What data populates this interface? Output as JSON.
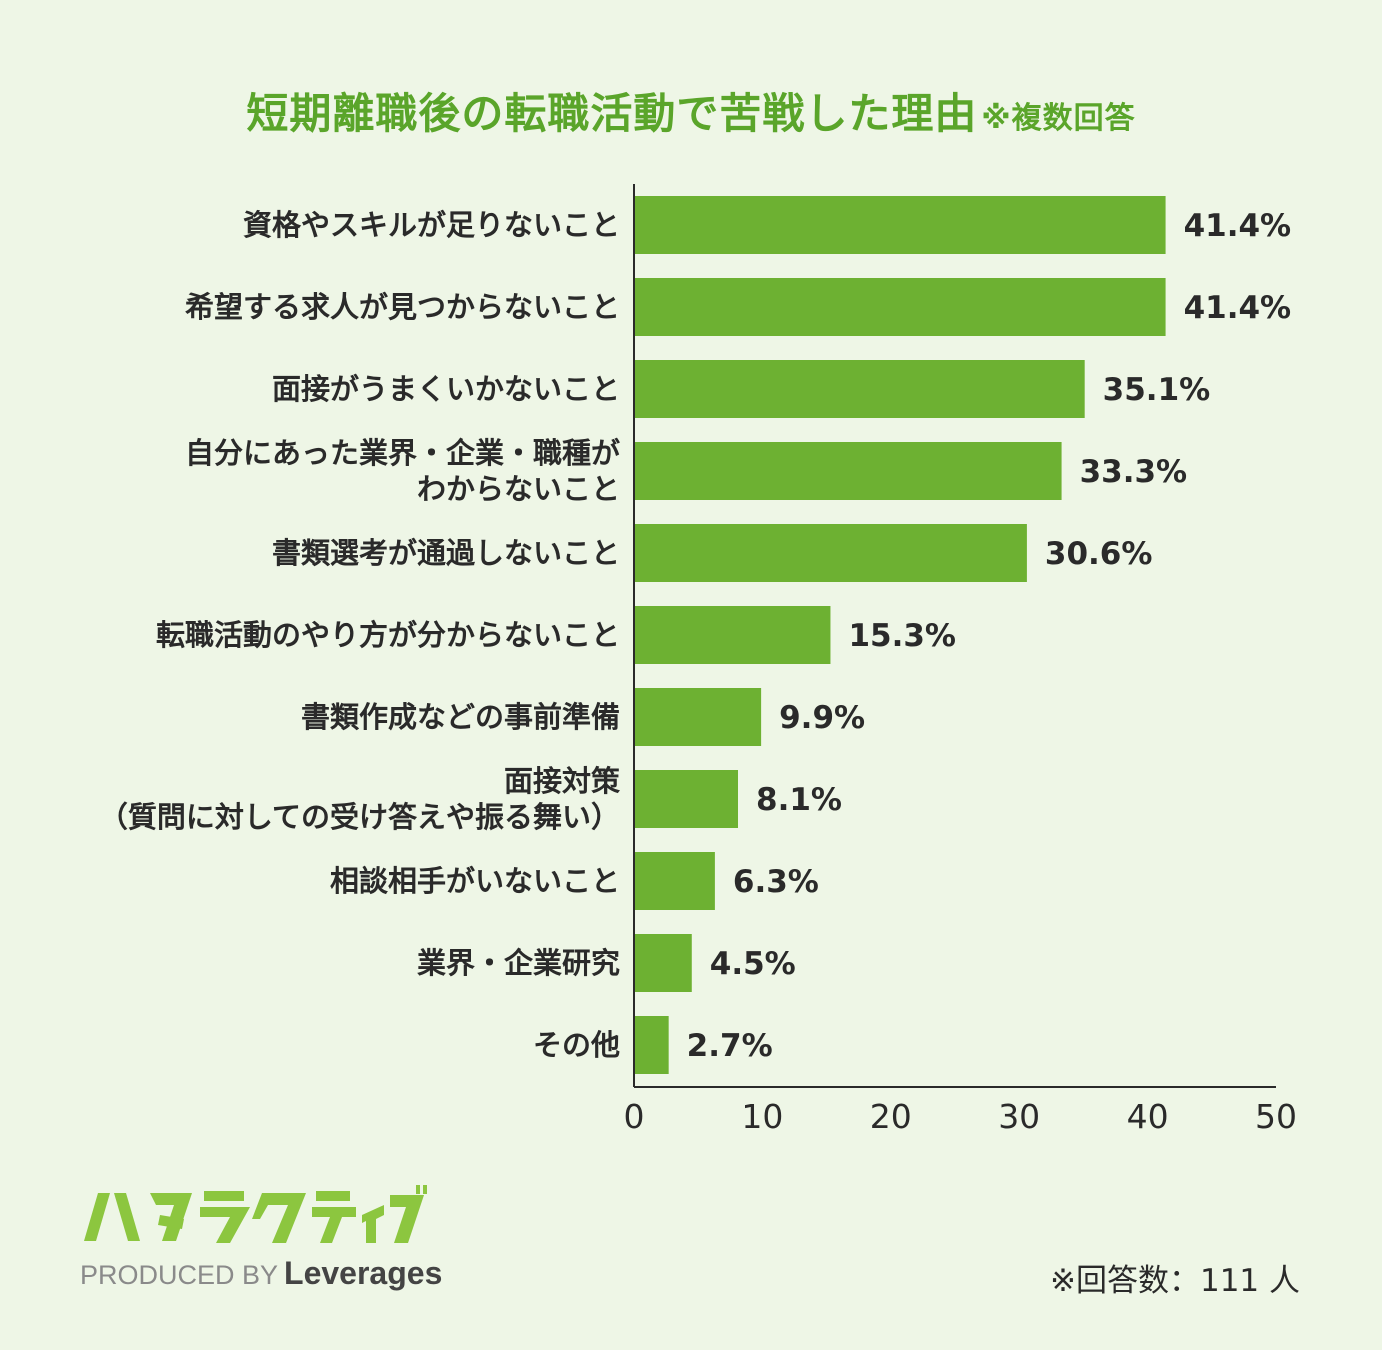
{
  "title": "短期離職後の転職活動で苦戦した理由",
  "title_note": "※複数回答",
  "chart_data": {
    "type": "bar",
    "orientation": "horizontal",
    "title": "短期離職後の転職活動で苦戦した理由",
    "categories": [
      [
        "資格やスキルが足りないこと"
      ],
      [
        "希望する求人が見つからないこと"
      ],
      [
        "面接がうまくいかないこと"
      ],
      [
        "自分にあった業界・企業・職種が",
        "わからないこと"
      ],
      [
        "書類選考が通過しないこと"
      ],
      [
        "転職活動のやり方が分からないこと"
      ],
      [
        "書類作成などの事前準備"
      ],
      [
        "面接対策",
        "（質問に対しての受け答えや振る舞い）"
      ],
      [
        "相談相手がいないこと"
      ],
      [
        "業界・企業研究"
      ],
      [
        "その他"
      ]
    ],
    "values": [
      41.4,
      41.4,
      35.1,
      33.3,
      30.6,
      15.3,
      9.9,
      8.1,
      6.3,
      4.5,
      2.7
    ],
    "value_labels": [
      "41.4%",
      "41.4%",
      "35.1%",
      "33.3%",
      "30.6%",
      "15.3%",
      "9.9%",
      "8.1%",
      "6.3%",
      "4.5%",
      "2.7%"
    ],
    "xlim": [
      0,
      50
    ],
    "xticks": [
      0,
      10,
      20,
      30,
      40,
      50
    ],
    "grid": false,
    "bar_color": "#6db132"
  },
  "logo": {
    "text": "ハタラクティブ",
    "color": "#8cc63f",
    "produced_by": "PRODUCED BY",
    "company": "Leverages"
  },
  "footnote": "※回答数：111 人"
}
